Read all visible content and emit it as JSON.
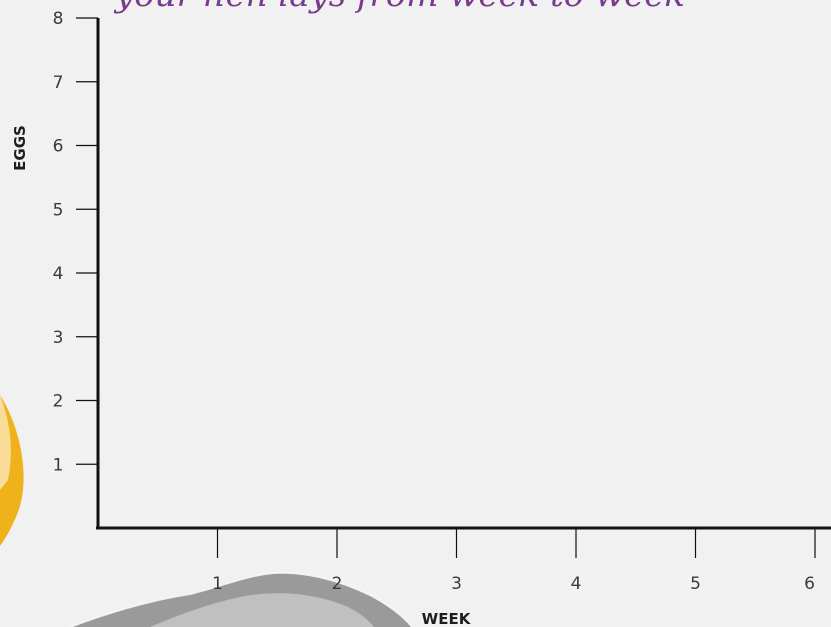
{
  "chart_data": {
    "type": "line",
    "title": "your hen lays from week to week",
    "xlabel": "WEEK",
    "ylabel": "EGGS",
    "xlim": [
      0,
      6
    ],
    "ylim": [
      0,
      8
    ],
    "x_ticks": [
      1,
      2,
      3,
      4,
      5,
      6
    ],
    "y_ticks": [
      1,
      2,
      3,
      4,
      5,
      6,
      7,
      8
    ],
    "series": [],
    "grid": false,
    "colors": {
      "axis": "#111111",
      "title": "#7a3a8e",
      "background": "#f1f1f1",
      "hen_yellow": "#f0b21a",
      "cloud_gray": "#8c8c8c"
    }
  }
}
